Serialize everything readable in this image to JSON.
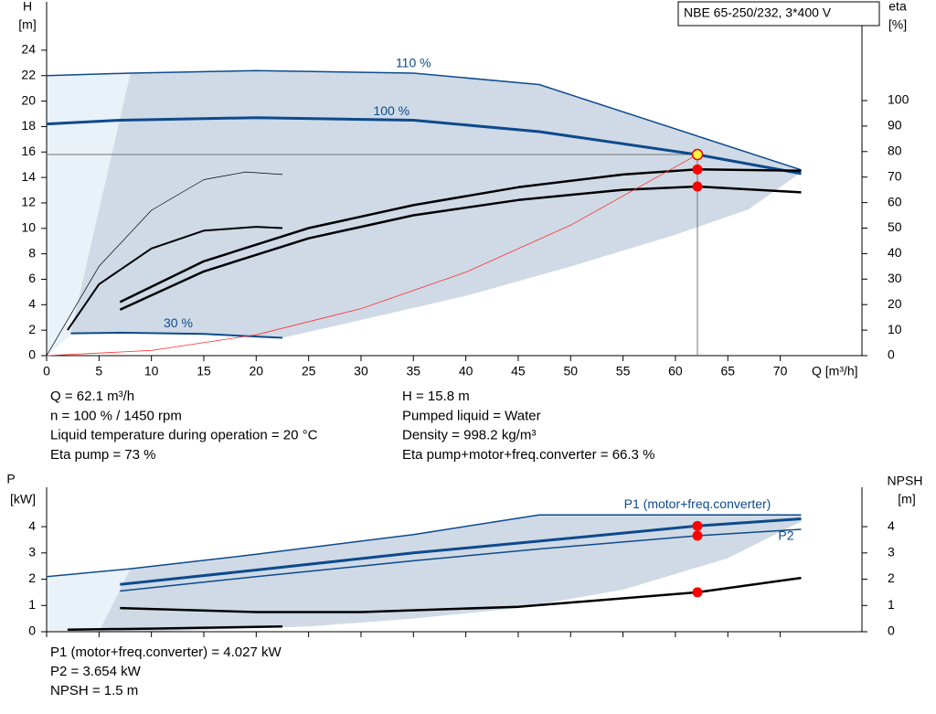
{
  "chart_data": [
    {
      "type": "line",
      "box_title": "NBE 65-250/232, 3*400 V",
      "y_label": [
        "H",
        "[m]"
      ],
      "y2_label": [
        "eta",
        "[%]"
      ],
      "x_label": "Q [m³/h]",
      "xlim": [
        0,
        77.8
      ],
      "xticks": [
        0,
        5,
        10,
        15,
        20,
        25,
        30,
        35,
        40,
        45,
        50,
        55,
        60,
        65,
        70
      ],
      "ylim": [
        0,
        27.8
      ],
      "yticks": [
        0,
        2,
        4,
        6,
        8,
        10,
        12,
        14,
        16,
        18,
        20,
        22,
        24
      ],
      "y2lim": [
        0,
        138.7
      ],
      "y2ticks": [
        0,
        10,
        20,
        30,
        40,
        50,
        60,
        70,
        80,
        90,
        100
      ],
      "areas": [
        {
          "color": "#e9f1f9",
          "x": [
            0,
            0,
            8,
            2.5,
            0
          ],
          "values": [
            0,
            22,
            22.2,
            1.75,
            0
          ]
        },
        {
          "color": "#cfdae6",
          "x": [
            8,
            20,
            35,
            47,
            72,
            72,
            67,
            60,
            50,
            40,
            30,
            22.5,
            15,
            7,
            2.3
          ],
          "values": [
            22.2,
            22.4,
            22.2,
            21.3,
            14.6,
            14.4,
            11.5,
            9.5,
            7,
            4.7,
            2.8,
            1.4,
            1.7,
            1.8,
            1.75
          ]
        }
      ],
      "series": [
        {
          "name": "110 %",
          "color": "#0d4a8c",
          "width": 1.5,
          "x": [
            0,
            8,
            20,
            35,
            47,
            72
          ],
          "values": [
            22,
            22.2,
            22.4,
            22.2,
            21.3,
            14.6
          ]
        },
        {
          "name": "100 %",
          "color": "#0d4a8c",
          "width": 3,
          "x": [
            0,
            7,
            20,
            35,
            47,
            62.1,
            72
          ],
          "values": [
            18.2,
            18.5,
            18.7,
            18.5,
            17.6,
            15.8,
            14.3
          ]
        },
        {
          "name": "30 %",
          "color": "#0d4a8c",
          "width": 2,
          "x": [
            2.3,
            7,
            15,
            22.5
          ],
          "values": [
            1.75,
            1.8,
            1.7,
            1.4
          ]
        },
        {
          "color": "#000000",
          "width": 2.5,
          "axis": "y2",
          "x": [
            7,
            15,
            25,
            35,
            45,
            55,
            62.1,
            72
          ],
          "values": [
            21,
            37,
            50,
            59,
            66,
            71,
            73,
            72.5
          ]
        },
        {
          "color": "#000000",
          "width": 2.5,
          "axis": "y2",
          "x": [
            7,
            15,
            25,
            35,
            45,
            55,
            62.1,
            72
          ],
          "values": [
            18,
            33,
            46,
            55,
            61,
            65,
            66.3,
            64
          ]
        },
        {
          "color": "#000000",
          "width": 2,
          "axis": "y2",
          "x": [
            2,
            5,
            10,
            15,
            20,
            22.5
          ],
          "values": [
            10,
            28,
            42,
            49,
            50.5,
            50
          ]
        },
        {
          "color": "#000000",
          "width": 0.7,
          "axis": "y2",
          "x": [
            0,
            5,
            10,
            15,
            19,
            22.5
          ],
          "values": [
            0,
            35,
            57,
            69,
            72,
            71
          ]
        },
        {
          "color": "#ff3030",
          "width": 0.8,
          "x": [
            0,
            10,
            20,
            30,
            40,
            50,
            62.1
          ],
          "values": [
            0,
            0.41,
            1.64,
            3.69,
            6.56,
            10.25,
            15.8
          ]
        }
      ],
      "markers": [
        {
          "color": "#ffff40",
          "x": 62.1,
          "y": 15.8
        },
        {
          "color": "#ff0000",
          "axis": "y2",
          "x": 62.1,
          "y": 73
        },
        {
          "color": "#ff0000",
          "axis": "y2",
          "x": 62.1,
          "y": 66.3
        }
      ]
    },
    {
      "type": "line",
      "y_label": [
        "P",
        "[kW]"
      ],
      "y2_label": [
        "NPSH",
        "[m]"
      ],
      "xlim": [
        0,
        77.8
      ],
      "xticks": [
        0,
        5,
        10,
        15,
        20,
        25,
        30,
        35,
        40,
        45,
        50,
        55,
        60,
        65,
        70
      ],
      "ylim": [
        0,
        5.5
      ],
      "yticks": [
        0,
        1,
        2,
        3,
        4
      ],
      "y2lim": [
        0,
        5.5
      ],
      "y2ticks": [
        0,
        1,
        2,
        3,
        4
      ],
      "areas": [
        {
          "color": "#e9f1f9",
          "x": [
            0,
            0,
            8,
            5,
            0
          ],
          "values": [
            0,
            2.1,
            2.4,
            0,
            0
          ]
        },
        {
          "color": "#cfdae6",
          "x": [
            8,
            20,
            35,
            47,
            72,
            72,
            65,
            55,
            45,
            35,
            25,
            10,
            5
          ],
          "values": [
            2.4,
            2.95,
            3.7,
            4.45,
            4.45,
            4.2,
            2.8,
            1.6,
            0.9,
            0.5,
            0.2,
            0,
            0
          ]
        }
      ],
      "series": [
        {
          "name": "P1 (motor+freq.converter)",
          "color": "#0d4a8c",
          "width": 3,
          "x": [
            7,
            20,
            35,
            47,
            62.1,
            72
          ],
          "values": [
            1.8,
            2.35,
            3.0,
            3.45,
            4.027,
            4.3
          ]
        },
        {
          "name": "P2",
          "color": "#0d4a8c",
          "width": 1.5,
          "x": [
            7,
            20,
            35,
            47,
            62.1,
            72
          ],
          "values": [
            1.55,
            2.1,
            2.7,
            3.15,
            3.654,
            3.9
          ]
        },
        {
          "color": "#0d4a8c",
          "width": 1.5,
          "x": [
            0,
            8,
            20,
            35,
            47,
            72
          ],
          "values": [
            2.1,
            2.4,
            2.95,
            3.7,
            4.45,
            4.45
          ]
        },
        {
          "color": "#000000",
          "width": 2.5,
          "axis": "y2",
          "x": [
            7,
            20,
            30,
            45,
            62.1,
            72
          ],
          "values": [
            0.9,
            0.75,
            0.75,
            0.95,
            1.5,
            2.05
          ]
        },
        {
          "color": "#000000",
          "width": 2.5,
          "x": [
            2,
            10,
            22.5
          ],
          "values": [
            0.08,
            0.12,
            0.2
          ]
        }
      ],
      "markers": [
        {
          "color": "#ff0000",
          "x": 62.1,
          "y": 4.027
        },
        {
          "color": "#ff0000",
          "x": 62.1,
          "y": 3.654
        },
        {
          "color": "#ff0000",
          "axis": "y2",
          "x": 62.1,
          "y": 1.5
        }
      ]
    }
  ],
  "duty_point_text": {
    "left": [
      "Q = 62.1 m³/h",
      "n = 100 % / 1450 rpm",
      "Liquid temperature during operation = 20 °C",
      "Eta pump = 73 %"
    ],
    "right": [
      "H = 15.8 m",
      "Pumped liquid = Water",
      "Density = 998.2 kg/m³",
      "Eta pump+motor+freq.converter = 66.3 %"
    ]
  },
  "power_text": [
    "P1 (motor+freq.converter) = 4.027 kW",
    "P2 = 3.654 kW",
    "NPSH = 1.5 m"
  ]
}
